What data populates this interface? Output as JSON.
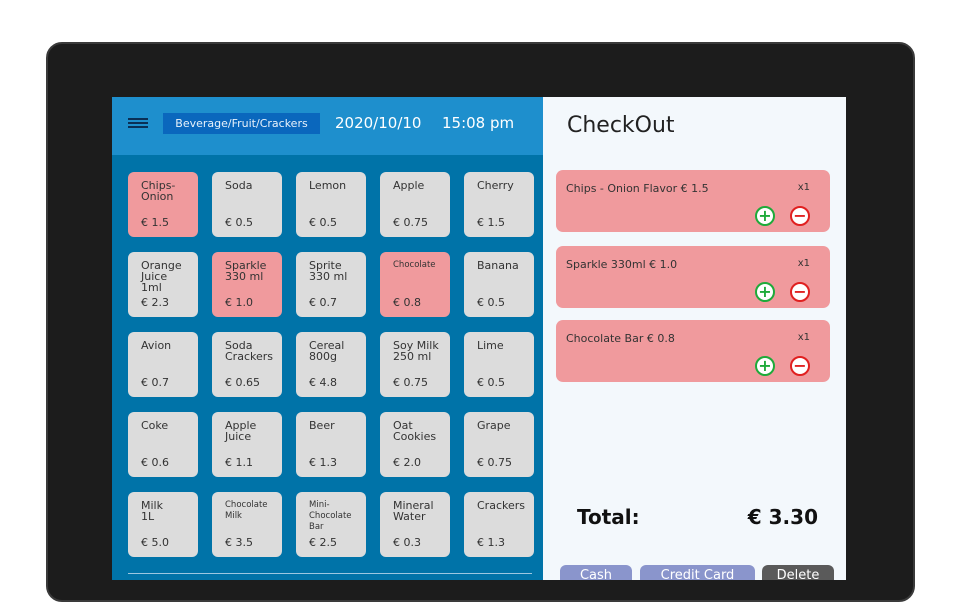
{
  "header": {
    "category": "Beverage/Fruit/Crackers",
    "date": "2020/10/10",
    "time": "15:08 pm"
  },
  "products": [
    {
      "name": "Chips-\nOnion",
      "price": "€ 1.5",
      "selected": true
    },
    {
      "name": "Soda",
      "price": "€ 0.5",
      "selected": false
    },
    {
      "name": "Lemon",
      "price": "€ 0.5",
      "selected": false
    },
    {
      "name": "Apple",
      "price": "€ 0.75",
      "selected": false
    },
    {
      "name": "Cherry",
      "price": "€ 1.5",
      "selected": false
    },
    {
      "name": "Orange\nJuice\n1ml",
      "price": "€ 2.3",
      "selected": false
    },
    {
      "name": "Sparkle\n330 ml",
      "price": "€ 1.0",
      "selected": true
    },
    {
      "name": "Sprite\n330 ml",
      "price": "€ 0.7",
      "selected": false
    },
    {
      "name": "Chocolate",
      "price": "€ 0.8",
      "selected": true,
      "small": true
    },
    {
      "name": "Banana",
      "price": "€ 0.5",
      "selected": false
    },
    {
      "name": "Avion",
      "price": "€ 0.7",
      "selected": false
    },
    {
      "name": "Soda\nCrackers",
      "price": "€ 0.65",
      "selected": false
    },
    {
      "name": "Cereal\n800g",
      "price": "€ 4.8",
      "selected": false
    },
    {
      "name": "Soy Milk\n250 ml",
      "price": "€ 0.75",
      "selected": false
    },
    {
      "name": "Lime",
      "price": "€ 0.5",
      "selected": false
    },
    {
      "name": "Coke",
      "price": "€ 0.6",
      "selected": false
    },
    {
      "name": "Apple\nJuice",
      "price": "€ 1.1",
      "selected": false
    },
    {
      "name": "Beer",
      "price": "€ 1.3",
      "selected": false
    },
    {
      "name": "Oat\nCookies",
      "price": "€ 2.0",
      "selected": false
    },
    {
      "name": "Grape",
      "price": "€ 0.75",
      "selected": false
    },
    {
      "name": "Milk\n1L",
      "price": "€ 5.0",
      "selected": false
    },
    {
      "name": "Chocolate\nMilk",
      "price": "€ 3.5",
      "selected": false,
      "small": true
    },
    {
      "name": "Mini-\nChocolate\nBar",
      "price": "€ 2.5",
      "selected": false,
      "small": true
    },
    {
      "name": "Mineral\nWater",
      "price": "€ 0.3",
      "selected": false
    },
    {
      "name": "Crackers",
      "price": "€ 1.3",
      "selected": false
    }
  ],
  "checkout": {
    "title": "CheckOut",
    "items": [
      {
        "label": "Chips - Onion Flavor € 1.5",
        "qty": "x1"
      },
      {
        "label": "Sparkle 330ml € 1.0",
        "qty": "x1"
      },
      {
        "label": "Chocolate Bar € 0.8",
        "qty": "x1"
      }
    ],
    "plus": "+",
    "minus": "−",
    "total_label": "Total:",
    "total_value": "€ 3.30",
    "cash": "Cash",
    "credit": "Credit Card",
    "delete": "Delete"
  },
  "colors": {
    "selected": "#f09a9d",
    "tile": "#dcdcdc",
    "header": "#1e8fcd",
    "grid_bg": "#0073a8",
    "pay_btn": "#8a95cc",
    "delete_btn": "#5a5a5a"
  }
}
